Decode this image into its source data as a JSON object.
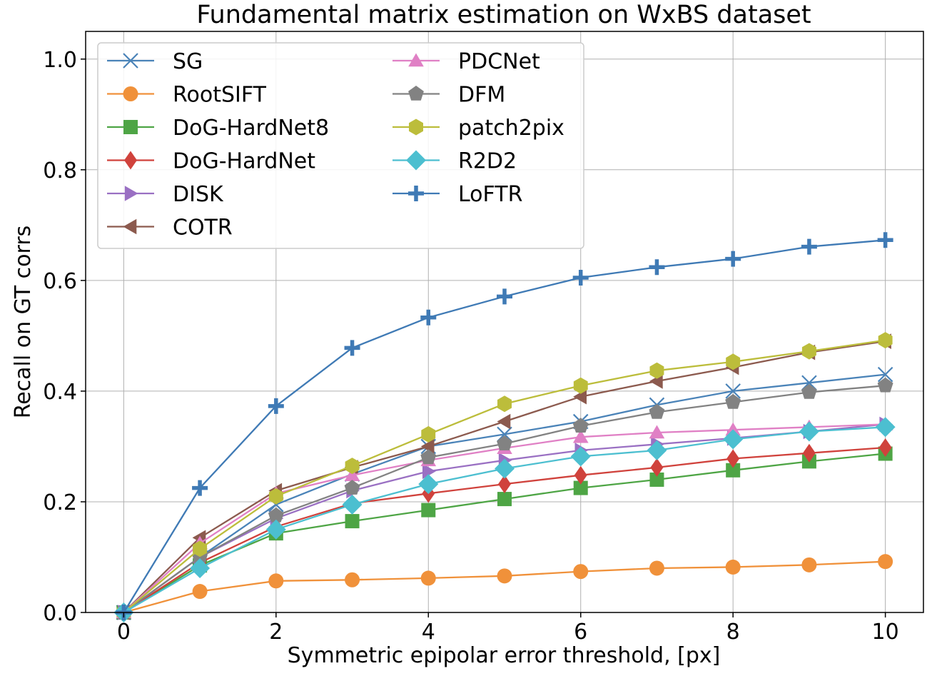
{
  "chart_data": {
    "type": "line",
    "title": "Fundamental matrix estimation on WxBS dataset",
    "xlabel": "Symmetric epipolar error threshold, [px]",
    "ylabel": "Recall on GT corrs",
    "xlim": [
      -0.5,
      10.5
    ],
    "ylim": [
      0.0,
      1.05
    ],
    "xticks": [
      0,
      2,
      4,
      6,
      8,
      10
    ],
    "yticks": [
      0.0,
      0.2,
      0.4,
      0.6,
      0.8,
      1.0
    ],
    "grid": true,
    "legend_placement": "top-left",
    "x": [
      0,
      1,
      2,
      3,
      4,
      5,
      6,
      7,
      8,
      9,
      10
    ],
    "series": [
      {
        "name": "SG",
        "color": "#4a83b8",
        "marker": "x",
        "values": [
          0.0,
          0.1,
          0.195,
          0.25,
          0.3,
          0.322,
          0.345,
          0.375,
          0.4,
          0.415,
          0.43
        ]
      },
      {
        "name": "RootSIFT",
        "color": "#f0913a",
        "marker": "circle",
        "values": [
          0.0,
          0.038,
          0.057,
          0.059,
          0.062,
          0.066,
          0.074,
          0.08,
          0.082,
          0.086,
          0.092
        ]
      },
      {
        "name": "DoG-HardNet8",
        "color": "#4ea545",
        "marker": "square",
        "values": [
          0.0,
          0.085,
          0.143,
          0.165,
          0.185,
          0.205,
          0.225,
          0.24,
          0.257,
          0.273,
          0.287
        ]
      },
      {
        "name": "DoG-HardNet",
        "color": "#d0423c",
        "marker": "thin-diamond",
        "values": [
          0.0,
          0.09,
          0.155,
          0.197,
          0.215,
          0.232,
          0.248,
          0.262,
          0.278,
          0.288,
          0.298
        ]
      },
      {
        "name": "DISK",
        "color": "#9a70c3",
        "marker": "triangle-right",
        "values": [
          0.0,
          0.1,
          0.17,
          0.22,
          0.255,
          0.275,
          0.293,
          0.304,
          0.315,
          0.327,
          0.34
        ]
      },
      {
        "name": "COTR",
        "color": "#8c5a4e",
        "marker": "triangle-left",
        "values": [
          0.0,
          0.135,
          0.22,
          0.262,
          0.3,
          0.345,
          0.39,
          0.418,
          0.443,
          0.47,
          0.49
        ]
      },
      {
        "name": "PDCNet",
        "color": "#e080c5",
        "marker": "triangle-up",
        "values": [
          0.0,
          0.125,
          0.215,
          0.248,
          0.275,
          0.297,
          0.317,
          0.325,
          0.33,
          0.335,
          0.34
        ]
      },
      {
        "name": "DFM",
        "color": "#828282",
        "marker": "pentagon",
        "values": [
          0.0,
          0.1,
          0.175,
          0.225,
          0.28,
          0.305,
          0.337,
          0.362,
          0.38,
          0.398,
          0.41
        ]
      },
      {
        "name": "patch2pix",
        "color": "#bcbd3b",
        "marker": "hexagon",
        "values": [
          0.0,
          0.115,
          0.21,
          0.265,
          0.322,
          0.377,
          0.41,
          0.437,
          0.453,
          0.472,
          0.492
        ]
      },
      {
        "name": "R2D2",
        "color": "#4cbfd0",
        "marker": "diamond",
        "values": [
          0.0,
          0.08,
          0.15,
          0.195,
          0.232,
          0.26,
          0.282,
          0.293,
          0.313,
          0.327,
          0.335
        ]
      },
      {
        "name": "LoFTR",
        "color": "#3f7ab5",
        "marker": "plus",
        "values": [
          0.0,
          0.225,
          0.373,
          0.478,
          0.533,
          0.571,
          0.605,
          0.624,
          0.639,
          0.661,
          0.673
        ]
      }
    ]
  }
}
